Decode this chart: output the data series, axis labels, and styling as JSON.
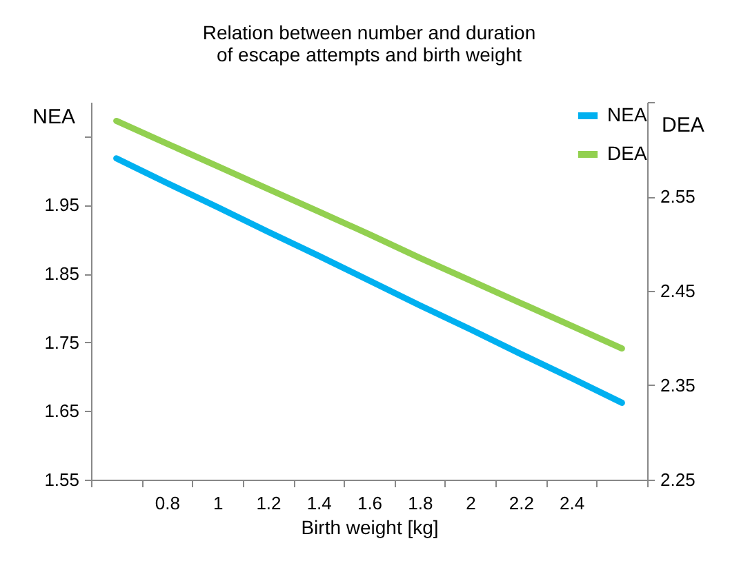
{
  "chart_data": {
    "type": "line",
    "title": "Relation between number and duration of escape attempts and birth weight",
    "xlabel": "Birth weight [kg]",
    "ylabel": "NEA",
    "y2label": "DEA",
    "categories": [
      null,
      "0.8",
      "1",
      "1.2",
      "1.4",
      "1.6",
      "1.8",
      "2",
      "2.2",
      "2.4",
      null
    ],
    "series": [
      {
        "name": "NEA",
        "color": "#00b0f0",
        "values": [
          2.018,
          1.982,
          1.947,
          1.911,
          1.876,
          1.84,
          1.804,
          1.769,
          1.733,
          1.698,
          1.662
        ]
      },
      {
        "name": "DEA",
        "color": "#92d050",
        "axis": "y2",
        "values": [
          2.63,
          2.606,
          2.582,
          2.558,
          2.534,
          2.51,
          2.485,
          2.461,
          2.437,
          2.413,
          2.389
        ]
      }
    ],
    "ylim": [
      1.55,
      2.1
    ],
    "yticks": [
      1.55,
      1.65,
      1.75,
      1.85,
      1.95,
      {
        "value": 2.05,
        "label": null
      }
    ],
    "y2lim": [
      2.25,
      2.65
    ],
    "y2ticks": [
      2.25,
      2.35,
      2.45,
      2.55,
      {
        "value": 2.65,
        "label": null
      }
    ],
    "grid": false,
    "legend": "top right",
    "marker": "none",
    "line_style": "solid"
  }
}
